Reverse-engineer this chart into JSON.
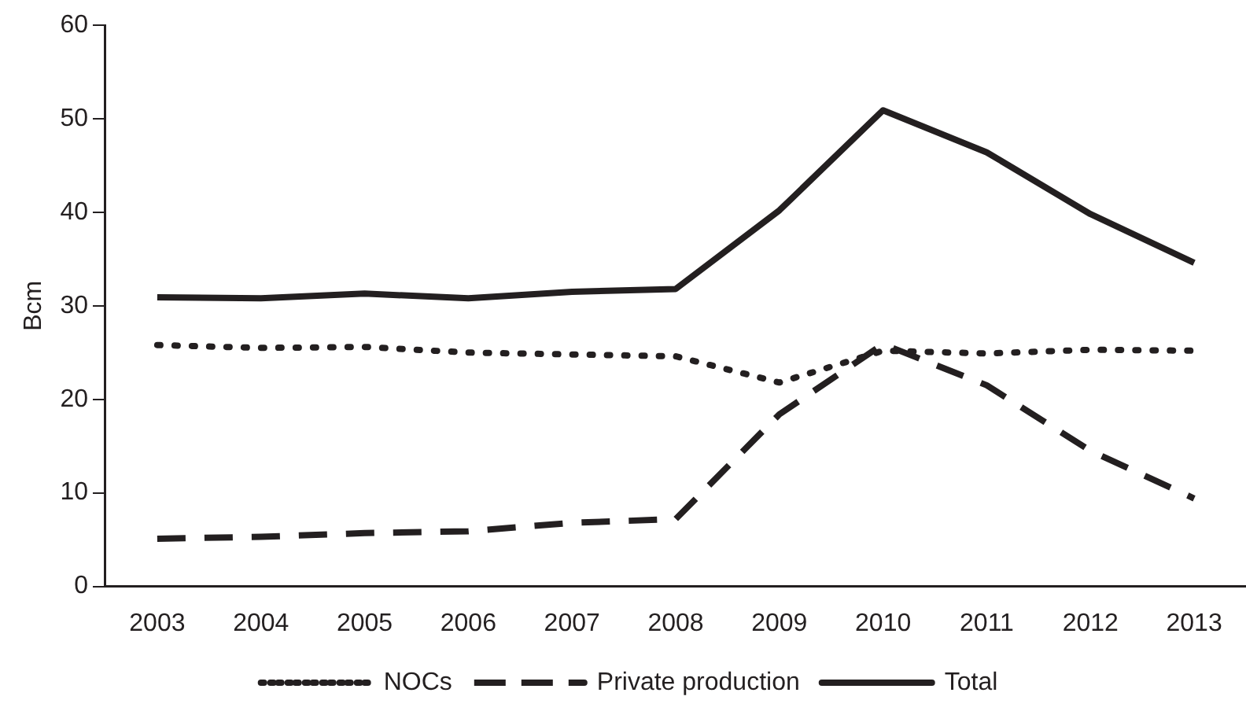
{
  "chart_data": {
    "type": "line",
    "ylabel": "Bcm",
    "categories": [
      "2003",
      "2004",
      "2005",
      "2006",
      "2007",
      "2008",
      "2009",
      "2010",
      "2011",
      "2012",
      "2013"
    ],
    "series": [
      {
        "name": "NOCs",
        "color": "#231f20",
        "line_style": "dotted",
        "values": [
          25.8,
          25.5,
          25.6,
          25.0,
          24.8,
          24.6,
          21.8,
          25.2,
          24.9,
          25.3,
          25.2
        ]
      },
      {
        "name": "Private production",
        "color": "#231f20",
        "line_style": "dashed",
        "values": [
          5.1,
          5.3,
          5.7,
          5.9,
          6.8,
          7.2,
          18.4,
          25.9,
          21.5,
          14.5,
          9.4
        ]
      },
      {
        "name": "Total",
        "color": "#231f20",
        "line_style": "solid",
        "values": [
          30.9,
          30.8,
          31.3,
          30.8,
          31.5,
          31.8,
          40.2,
          50.9,
          46.4,
          39.8,
          34.6
        ]
      }
    ],
    "ylim": [
      0,
      60
    ],
    "yticks": [
      0,
      10,
      20,
      30,
      40,
      50,
      60
    ],
    "grid": false,
    "legend": "bottom",
    "marker": "none"
  }
}
